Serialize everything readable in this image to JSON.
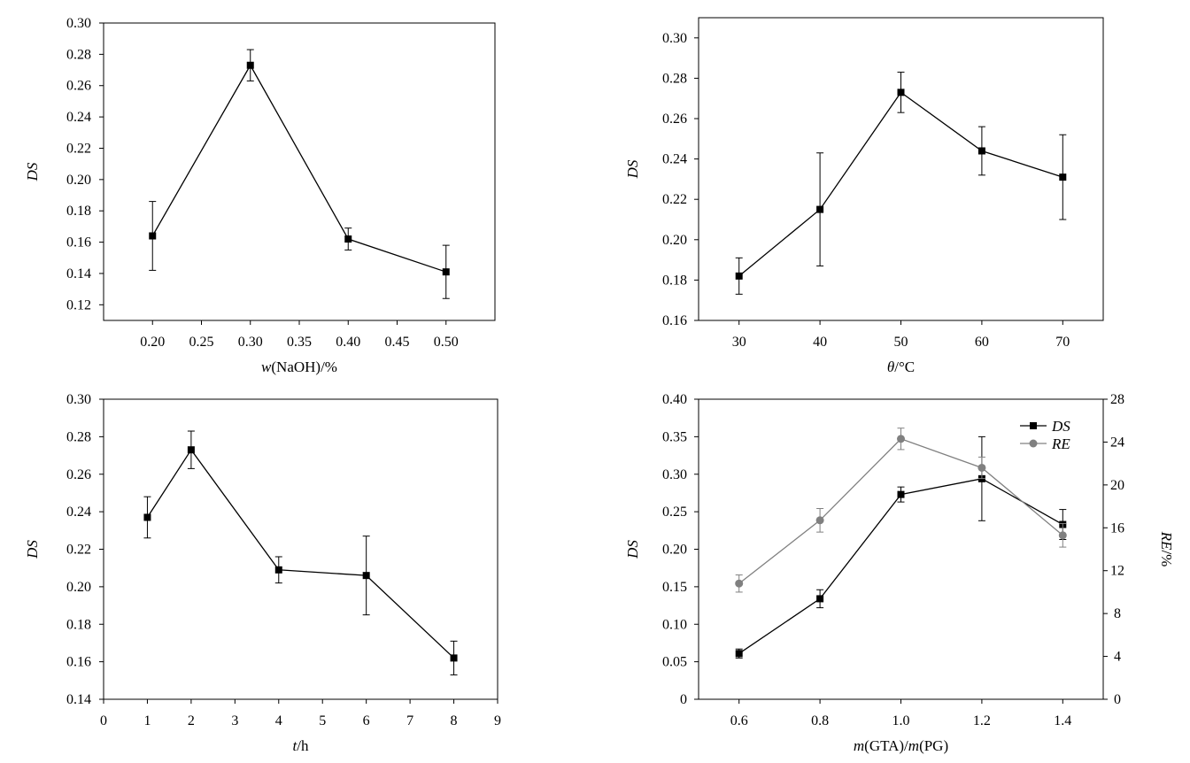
{
  "chart_data": [
    {
      "id": "a",
      "type": "line",
      "xlabel_parts": [
        [
          "w",
          true
        ],
        [
          "(NaOH)/%",
          false
        ]
      ],
      "ylabel": "DS",
      "xlim": [
        0.15,
        0.55
      ],
      "ylim": [
        0.11,
        0.3
      ],
      "xticks": [
        0.2,
        0.25,
        0.3,
        0.35,
        0.4,
        0.45,
        0.5
      ],
      "xtick_labels": [
        "0.20",
        "0.25",
        "0.30",
        "0.35",
        "0.40",
        "0.45",
        "0.50"
      ],
      "yticks": [
        0.12,
        0.14,
        0.16,
        0.18,
        0.2,
        0.22,
        0.24,
        0.26,
        0.28,
        0.3
      ],
      "ytick_labels": [
        "0.12",
        "0.14",
        "0.16",
        "0.18",
        "0.20",
        "0.22",
        "0.24",
        "0.26",
        "0.28",
        "0.30"
      ],
      "series": [
        {
          "marker": "square",
          "color": "#000000",
          "x": [
            0.2,
            0.3,
            0.4,
            0.5
          ],
          "y": [
            0.164,
            0.273,
            0.162,
            0.141
          ],
          "err": [
            0.022,
            0.01,
            0.007,
            0.017
          ]
        }
      ]
    },
    {
      "id": "b",
      "type": "line",
      "xlabel_parts": [
        [
          "θ",
          true
        ],
        [
          "/°C",
          false
        ]
      ],
      "ylabel": "DS",
      "xlim": [
        25,
        75
      ],
      "ylim": [
        0.16,
        0.31
      ],
      "xticks": [
        30,
        40,
        50,
        60,
        70
      ],
      "xtick_labels": [
        "30",
        "40",
        "50",
        "60",
        "70"
      ],
      "yticks": [
        0.16,
        0.18,
        0.2,
        0.22,
        0.24,
        0.26,
        0.28,
        0.3
      ],
      "ytick_labels": [
        "0.16",
        "0.18",
        "0.20",
        "0.22",
        "0.24",
        "0.26",
        "0.28",
        "0.30"
      ],
      "series": [
        {
          "marker": "square",
          "color": "#000000",
          "x": [
            30,
            40,
            50,
            60,
            70
          ],
          "y": [
            0.182,
            0.215,
            0.273,
            0.244,
            0.231
          ],
          "err": [
            0.009,
            0.028,
            0.01,
            0.012,
            0.021
          ]
        }
      ]
    },
    {
      "id": "c",
      "type": "line",
      "xlabel_parts": [
        [
          "t",
          true
        ],
        [
          "/h",
          false
        ]
      ],
      "ylabel": "DS",
      "xlim": [
        0,
        9
      ],
      "ylim": [
        0.14,
        0.3
      ],
      "xticks": [
        0,
        1,
        2,
        3,
        4,
        5,
        6,
        7,
        8,
        9
      ],
      "xtick_labels": [
        "0",
        "1",
        "2",
        "3",
        "4",
        "5",
        "6",
        "7",
        "8",
        "9"
      ],
      "yticks": [
        0.14,
        0.16,
        0.18,
        0.2,
        0.22,
        0.24,
        0.26,
        0.28,
        0.3
      ],
      "ytick_labels": [
        "0.14",
        "0.16",
        "0.18",
        "0.20",
        "0.22",
        "0.24",
        "0.26",
        "0.28",
        "0.30"
      ],
      "series": [
        {
          "marker": "square",
          "color": "#000000",
          "x": [
            1,
            2,
            4,
            6,
            8
          ],
          "y": [
            0.237,
            0.273,
            0.209,
            0.206,
            0.162
          ],
          "err": [
            0.011,
            0.01,
            0.007,
            0.021,
            0.009
          ]
        }
      ]
    },
    {
      "id": "d",
      "type": "line",
      "xlabel_parts": [
        [
          "m",
          true
        ],
        [
          "(GTA)/",
          false
        ],
        [
          "m",
          true
        ],
        [
          "(PG)",
          false
        ]
      ],
      "ylabel": "DS",
      "y2label_parts": [
        [
          "RE",
          true
        ],
        [
          "/%",
          false
        ]
      ],
      "xlim": [
        0.5,
        1.5
      ],
      "ylim": [
        0,
        0.4
      ],
      "y2lim": [
        0,
        28
      ],
      "xticks": [
        0.6,
        0.8,
        1.0,
        1.2,
        1.4
      ],
      "xtick_labels": [
        "0.6",
        "0.8",
        "1.0",
        "1.2",
        "1.4"
      ],
      "yticks": [
        0,
        0.05,
        0.1,
        0.15,
        0.2,
        0.25,
        0.3,
        0.35,
        0.4
      ],
      "ytick_labels": [
        "0",
        "0.05",
        "0.10",
        "0.15",
        "0.20",
        "0.25",
        "0.30",
        "0.35",
        "0.40"
      ],
      "y2ticks": [
        0,
        4,
        8,
        12,
        16,
        20,
        24,
        28
      ],
      "y2tick_labels": [
        "0",
        "4",
        "8",
        "12",
        "16",
        "20",
        "24",
        "28"
      ],
      "legend_position": "top-right",
      "series": [
        {
          "name": "DS",
          "marker": "square",
          "color": "#000000",
          "axis": "left",
          "x": [
            0.6,
            0.8,
            1.0,
            1.2,
            1.4
          ],
          "y": [
            0.061,
            0.134,
            0.273,
            0.294,
            0.233
          ],
          "err": [
            0.006,
            0.012,
            0.01,
            0.056,
            0.02
          ]
        },
        {
          "name": "RE",
          "marker": "circle",
          "color": "#808080",
          "axis": "right",
          "x": [
            0.6,
            0.8,
            1.0,
            1.2,
            1.4
          ],
          "y": [
            10.8,
            16.7,
            24.3,
            21.6,
            15.3
          ],
          "err": [
            0.8,
            1.1,
            1.0,
            1.0,
            1.1
          ]
        }
      ]
    }
  ]
}
